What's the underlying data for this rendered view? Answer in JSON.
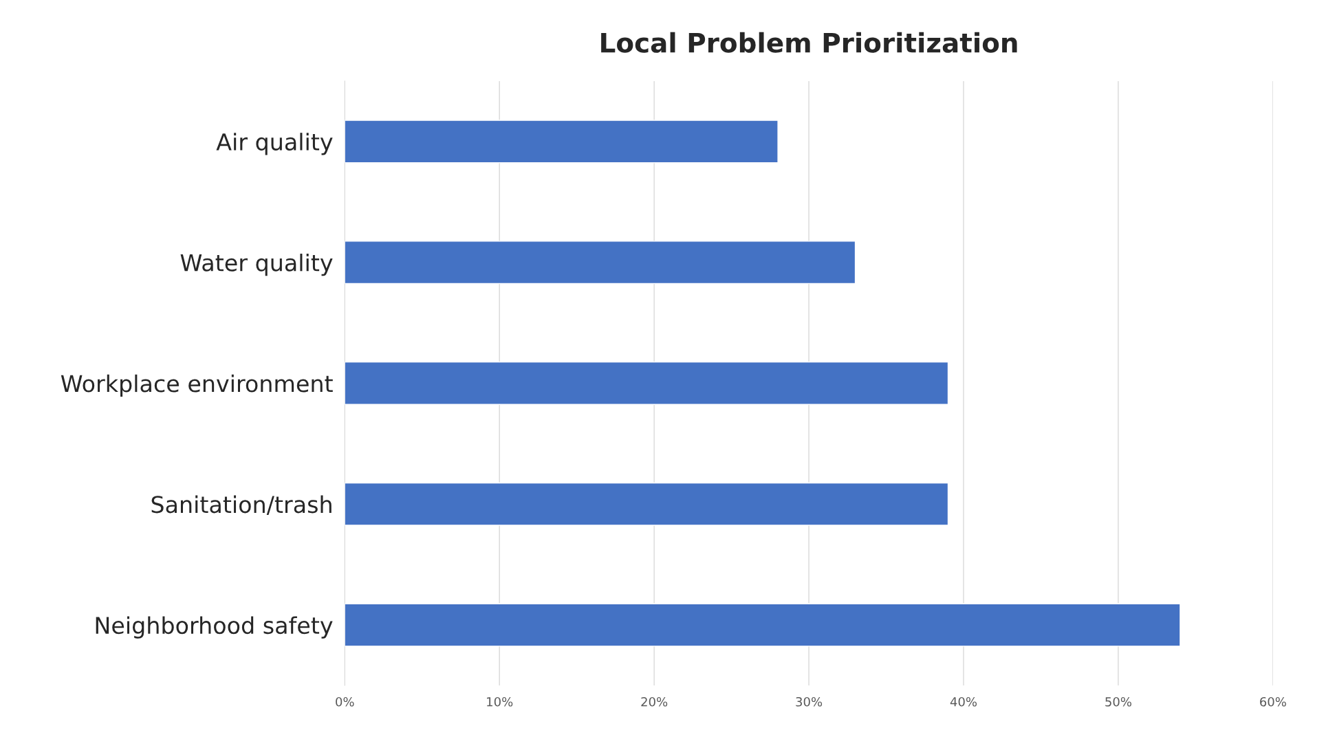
{
  "chart_data": {
    "type": "bar",
    "orientation": "horizontal",
    "title": "Local Problem Prioritization",
    "categories": [
      "Air quality",
      "Water quality",
      "Workplace environment",
      "Sanitation/trash",
      "Neighborhood safety"
    ],
    "values": [
      28,
      33,
      39,
      39,
      54
    ],
    "color": "#4472c4",
    "xlim": [
      0,
      60
    ],
    "xticks": [
      {
        "value": 0,
        "label": "0%"
      },
      {
        "value": 10,
        "label": "10%"
      },
      {
        "value": 20,
        "label": "20%"
      },
      {
        "value": 30,
        "label": "30%"
      },
      {
        "value": 40,
        "label": "40%"
      },
      {
        "value": 50,
        "label": "50%"
      },
      {
        "value": 60,
        "label": "60%"
      }
    ],
    "grid": "x",
    "legend": false
  }
}
